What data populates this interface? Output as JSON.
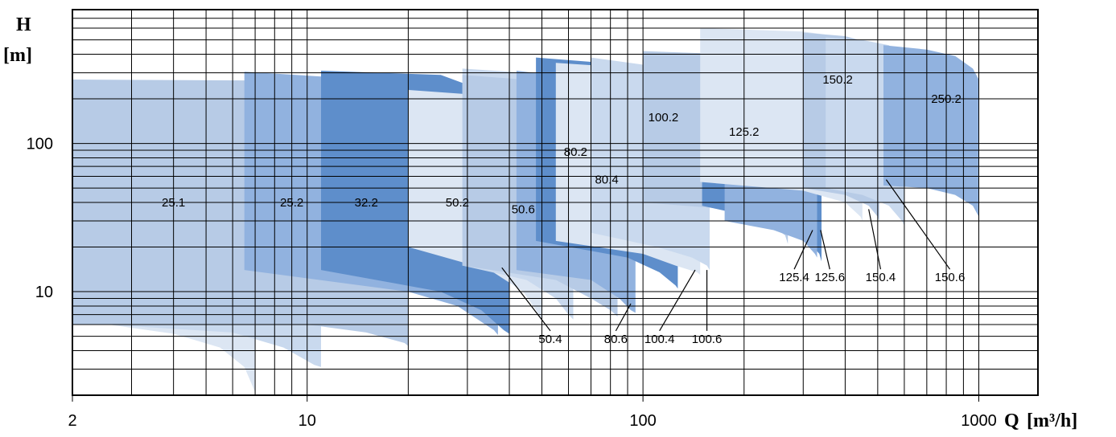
{
  "chart_data": {
    "type": "area",
    "title": "",
    "xlabel": "Q",
    "xunit": "[m³/h]",
    "ylabel": "H",
    "yunit": "[m]",
    "xscale": "log",
    "yscale": "log",
    "xlim": [
      2,
      1500
    ],
    "ylim": [
      2,
      800
    ],
    "xticks": [
      {
        "value": 2,
        "label": "2"
      },
      {
        "value": 10,
        "label": "10"
      },
      {
        "value": 100,
        "label": "100"
      },
      {
        "value": 1000,
        "label": "1000"
      }
    ],
    "yticks": [
      {
        "value": 10,
        "label": "10"
      },
      {
        "value": 100,
        "label": "100"
      }
    ],
    "grid": true,
    "legend": "none",
    "series": [
      {
        "name": "25.1",
        "color": "#dce6f3",
        "x": [
          2,
          4,
          5.5,
          6.5,
          7
        ],
        "top": [
          188,
          165,
          130,
          75,
          50
        ],
        "bottom": [
          6.5,
          5.2,
          4.2,
          3.1,
          2.1
        ],
        "label_at": [
          4,
          40
        ],
        "leader_to": null
      },
      {
        "name": "25.2",
        "color": "#c9d9ee",
        "x": [
          2,
          6,
          8.5,
          10.5,
          11
        ],
        "top": [
          230,
          210,
          170,
          100,
          75
        ],
        "bottom": [
          6.2,
          5.3,
          4.2,
          3.2,
          3.1
        ],
        "label_at": [
          9,
          40
        ],
        "leader_to": null
      },
      {
        "name": "32.2",
        "color": "#b7cbe6",
        "x": [
          2,
          10,
          15,
          19.5,
          20
        ],
        "top": [
          270,
          265,
          210,
          130,
          100
        ],
        "bottom": [
          6,
          6,
          5.3,
          4.5,
          4.3
        ],
        "label_at": [
          15,
          40
        ],
        "leader_to": null
      },
      {
        "name": "50.2",
        "color": "#91b2df",
        "x": [
          6.5,
          20,
          28,
          36,
          37
        ],
        "top": [
          305,
          260,
          210,
          140,
          120
        ],
        "bottom": [
          14,
          10,
          8,
          5.5,
          5.1
        ],
        "label_at": [
          28,
          40
        ],
        "leader_to": null
      },
      {
        "name": "50.4",
        "color": "#5e8ecb",
        "x": [
          11,
          25,
          33,
          38.5,
          40
        ],
        "top": [
          310,
          290,
          230,
          160,
          125
        ],
        "bottom": [
          14,
          10,
          7.5,
          5.5,
          5.2
        ],
        "label_at": [
          53,
          4.8
        ],
        "leader_to": [
          38,
          14.5
        ]
      },
      {
        "name": "50.6",
        "color": "#dce6f3",
        "x": [
          20,
          35,
          44,
          48,
          50
        ],
        "top": [
          230,
          210,
          170,
          130,
          110
        ],
        "bottom": [
          20,
          14,
          10,
          7.5,
          6.5
        ],
        "label_at": [
          44,
          36
        ],
        "leader_to": null
      },
      {
        "name": "80.2",
        "color": "#c9d9ee",
        "x": [
          29,
          45,
          55,
          60,
          62
        ],
        "top": [
          320,
          300,
          250,
          190,
          160
        ],
        "bottom": [
          15,
          12,
          9,
          7,
          6.5
        ],
        "label_at": [
          63,
          88
        ],
        "leader_to": null
      },
      {
        "name": "80.4",
        "color": "#b7cbe6",
        "x": [
          29,
          55,
          70,
          80,
          84
        ],
        "top": [
          290,
          260,
          210,
          160,
          140
        ],
        "bottom": [
          15,
          12,
          9,
          7.5,
          6.8
        ],
        "label_at": [
          78,
          57
        ],
        "leader_to": null
      },
      {
        "name": "80.6",
        "color": "#91b2df",
        "x": [
          42,
          70,
          85,
          92,
          95
        ],
        "top": [
          310,
          270,
          220,
          170,
          150
        ],
        "bottom": [
          14,
          12,
          9,
          7.5,
          7.2
        ],
        "label_at": [
          83,
          4.8
        ],
        "leader_to": [
          92,
          8.3
        ]
      },
      {
        "name": "100.2",
        "color": "#5e8ecb",
        "x": [
          48,
          90,
          112,
          125,
          127
        ],
        "top": [
          380,
          340,
          280,
          220,
          190
        ],
        "bottom": [
          22,
          17,
          13.5,
          11,
          10.5
        ],
        "label_at": [
          115,
          150
        ],
        "leader_to": null
      },
      {
        "name": "100.4",
        "color": "#dce6f3",
        "x": [
          55,
          100,
          125,
          145,
          148
        ],
        "top": [
          350,
          320,
          260,
          200,
          170
        ],
        "bottom": [
          22,
          18,
          15,
          13.5,
          13
        ],
        "label_at": [
          112,
          4.8
        ],
        "leader_to": [
          143,
          14
        ]
      },
      {
        "name": "100.6",
        "color": "#c9d9ee",
        "x": [
          70,
          110,
          140,
          155,
          158
        ],
        "top": [
          380,
          330,
          270,
          210,
          180
        ],
        "bottom": [
          25,
          20,
          17,
          15,
          14
        ],
        "label_at": [
          155,
          4.8
        ],
        "leader_to": [
          155,
          14
        ]
      },
      {
        "name": "125.2",
        "color": "#b7cbe6",
        "x": [
          100,
          180,
          230,
          265,
          270
        ],
        "top": [
          420,
          400,
          340,
          260,
          210
        ],
        "bottom": [
          40,
          36,
          30,
          24,
          21
        ],
        "label_at": [
          200,
          120
        ],
        "leader_to": null
      },
      {
        "name": "125.4",
        "color": "#5e8ecb",
        "x": [
          150,
          240,
          300,
          335,
          340
        ],
        "top": [
          390,
          360,
          300,
          210,
          170
        ],
        "bottom": [
          38,
          30,
          24,
          18,
          16
        ],
        "label_at": [
          282,
          12.5
        ],
        "leader_to": [
          320,
          26
        ]
      },
      {
        "name": "125.6",
        "color": "#91b2df",
        "x": [
          175,
          245,
          300,
          325,
          330
        ],
        "top": [
          380,
          350,
          290,
          200,
          160
        ],
        "bottom": [
          30,
          26,
          22,
          18,
          17
        ],
        "label_at": [
          360,
          12.5
        ],
        "leader_to": [
          338,
          26
        ]
      },
      {
        "name": "150.2",
        "color": "#dce6f3",
        "x": [
          148,
          300,
          400,
          445,
          450
        ],
        "top": [
          600,
          570,
          520,
          440,
          380
        ],
        "bottom": [
          55,
          48,
          40,
          32,
          30
        ],
        "label_at": [
          380,
          270
        ],
        "leader_to": null
      },
      {
        "name": "150.4",
        "color": "#b7cbe6",
        "x": [
          300,
          400,
          470,
          500,
          505
        ],
        "top": [
          560,
          530,
          480,
          400,
          340
        ],
        "bottom": [
          50,
          45,
          38,
          32,
          30
        ],
        "label_at": [
          510,
          12.5
        ],
        "leader_to": [
          470,
          36
        ]
      },
      {
        "name": "150.6",
        "color": "#c9d9ee",
        "x": [
          350,
          450,
          540,
          590,
          600
        ],
        "top": [
          520,
          500,
          460,
          380,
          320
        ],
        "bottom": [
          50,
          45,
          38,
          30,
          28
        ],
        "label_at": [
          820,
          12.5
        ],
        "leader_to": [
          530,
          57
        ]
      },
      {
        "name": "250.2",
        "color": "#91b2df",
        "x": [
          520,
          700,
          850,
          960,
          1000
        ],
        "top": [
          460,
          430,
          390,
          320,
          270
        ],
        "bottom": [
          52,
          50,
          45,
          38,
          32
        ],
        "label_at": [
          800,
          200
        ],
        "leader_to": null
      }
    ]
  }
}
